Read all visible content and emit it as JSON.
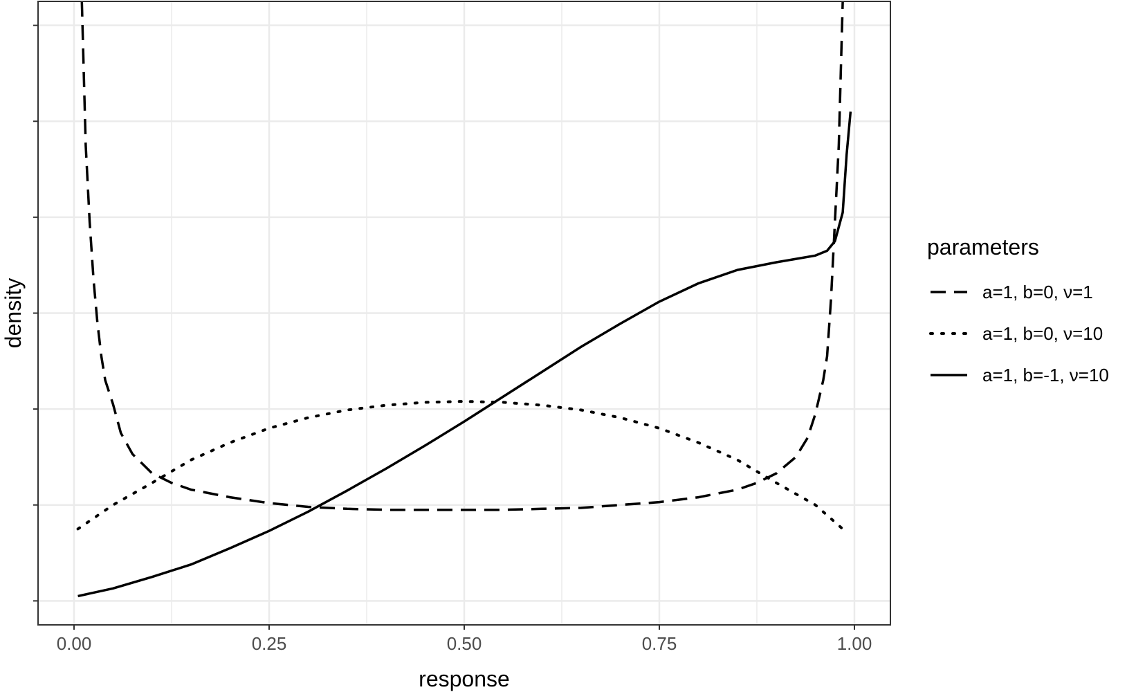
{
  "chart_data": {
    "type": "line",
    "xlabel": "response",
    "ylabel": "density",
    "xlim": [
      0,
      1
    ],
    "ylim": [
      0,
      6.5
    ],
    "x_ticks": [
      0,
      0.25,
      0.5,
      0.75,
      1
    ],
    "x_tick_labels": [
      "0.00",
      "0.25",
      "0.50",
      "0.75",
      "1.00"
    ],
    "y_ticks": [
      0.25,
      1.25,
      2.25,
      3.25,
      4.25,
      5.25,
      6.25
    ],
    "y_tick_labels": [],
    "grid": true,
    "legend": {
      "title": "parameters",
      "placement": "right"
    },
    "series": [
      {
        "name": "a=1, b=0, ν=1",
        "dash": "dashed",
        "x": [
          0.01,
          0.015,
          0.02,
          0.025,
          0.03,
          0.035,
          0.04,
          0.05,
          0.06,
          0.075,
          0.1,
          0.125,
          0.15,
          0.2,
          0.25,
          0.3,
          0.35,
          0.4,
          0.45,
          0.5,
          0.55,
          0.6,
          0.65,
          0.7,
          0.75,
          0.8,
          0.85,
          0.875,
          0.9,
          0.925,
          0.94,
          0.95,
          0.96,
          0.965,
          0.97,
          0.975,
          0.98,
          0.985
        ],
        "y": [
          6.6,
          5.0,
          4.2,
          3.6,
          3.15,
          2.8,
          2.55,
          2.3,
          2.0,
          1.78,
          1.58,
          1.48,
          1.41,
          1.33,
          1.27,
          1.23,
          1.21,
          1.2,
          1.2,
          1.2,
          1.2,
          1.21,
          1.22,
          1.25,
          1.28,
          1.33,
          1.41,
          1.48,
          1.58,
          1.75,
          1.95,
          2.2,
          2.55,
          2.8,
          3.4,
          4.2,
          5.0,
          6.6
        ]
      },
      {
        "name": "a=1, b=0, ν=10",
        "dash": "dotted",
        "x": [
          0.005,
          0.05,
          0.1,
          0.15,
          0.2,
          0.25,
          0.3,
          0.35,
          0.4,
          0.45,
          0.5,
          0.55,
          0.6,
          0.65,
          0.7,
          0.75,
          0.8,
          0.85,
          0.9,
          0.95,
          0.985
        ],
        "y": [
          1.0,
          1.25,
          1.48,
          1.72,
          1.9,
          2.05,
          2.16,
          2.24,
          2.29,
          2.32,
          2.33,
          2.32,
          2.29,
          2.24,
          2.16,
          2.05,
          1.9,
          1.72,
          1.48,
          1.25,
          1.0
        ]
      },
      {
        "name": "a=1, b=-1, ν=10",
        "dash": "solid",
        "x": [
          0.005,
          0.05,
          0.1,
          0.15,
          0.2,
          0.25,
          0.3,
          0.35,
          0.4,
          0.45,
          0.5,
          0.55,
          0.6,
          0.65,
          0.7,
          0.75,
          0.8,
          0.85,
          0.9,
          0.95,
          0.965,
          0.975,
          0.985,
          0.99,
          0.995
        ],
        "y": [
          0.3,
          0.38,
          0.5,
          0.63,
          0.8,
          0.98,
          1.18,
          1.4,
          1.63,
          1.87,
          2.12,
          2.38,
          2.64,
          2.9,
          3.14,
          3.37,
          3.56,
          3.7,
          3.78,
          3.85,
          3.9,
          4.0,
          4.3,
          4.9,
          5.35
        ]
      }
    ]
  }
}
